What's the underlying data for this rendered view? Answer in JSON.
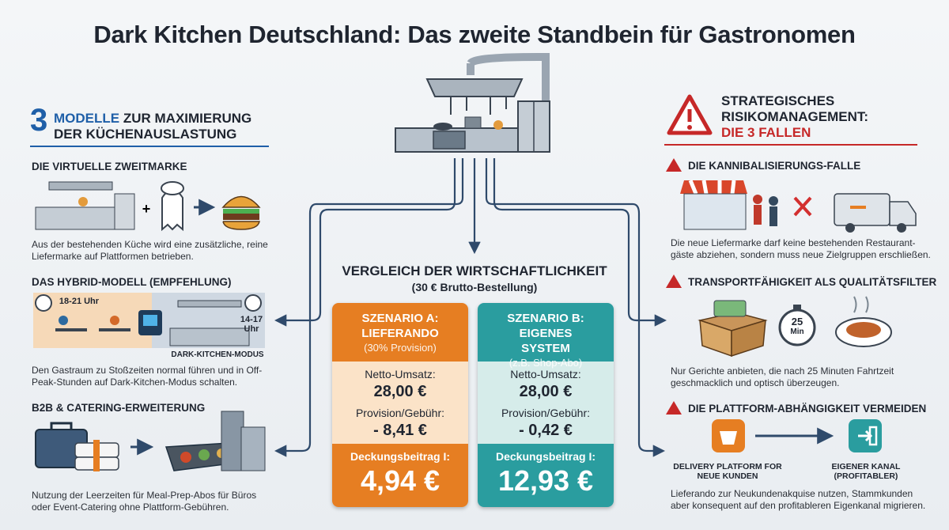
{
  "title": "Dark Kitchen Deutschland: Das zweite Standbein für Gastronomen",
  "left": {
    "heading_number": "3",
    "heading_highlight": "MODELLE",
    "heading_rest": "ZUR MAXIMIERUNG DER KÜCHENAUSLASTUNG",
    "models": [
      {
        "title": "DIE VIRTUELLE ZWEITMARKE",
        "text": "Aus der bestehenden Küche wird eine zusätzliche, reine Liefermarke auf Plattformen betrieben."
      },
      {
        "title": "DAS HYBRID-MODELL (EMPFEHLUNG)",
        "labels": [
          "18-21 Uhr",
          "14-17 Uhr",
          "DARK-KITCHEN-MODUS"
        ],
        "text": "Den Gastraum zu Stoßzeiten normal führen und in Off-Peak-Stunden auf Dark-Kitchen-Modus schalten."
      },
      {
        "title": "B2B & CATERING-ERWEITERUNG",
        "text": "Nutzung der Leerzeiten für Meal-Prep-Abos für Büros oder Event-Catering ohne Plattform-Gebühren."
      }
    ]
  },
  "center": {
    "title": "VERGLEICH DER WIRTSCHAFTLICHKEIT",
    "subtitle": "(30 € Brutto-Bestellung)",
    "scenarios": [
      {
        "name": "SZENARIO A: LIEFERANDO",
        "note": "(30% Provision)",
        "rows": [
          {
            "label": "Netto-Umsatz:",
            "value": "28,00 €"
          },
          {
            "label": "Provision/Gebühr:",
            "value": "- 8,41 €"
          }
        ],
        "result_label": "Deckungsbeitrag I:",
        "result": "4,94 €"
      },
      {
        "name": "SZENARIO B: EIGENES SYSTEM",
        "note": "(z.B. Shop-Abo)",
        "rows": [
          {
            "label": "Netto-Umsatz:",
            "value": "28,00 €"
          },
          {
            "label": "Provision/Gebühr:",
            "value": "- 0,42 €"
          }
        ],
        "result_label": "Deckungsbeitrag I:",
        "result": "12,93 €"
      }
    ]
  },
  "right": {
    "heading": "STRATEGISCHES RISIKOMANAGEMENT:",
    "heading_highlight": "DIE 3 FALLEN",
    "traps": [
      {
        "title": "DIE KANNIBALISIERUNGS-FALLE",
        "text": "Die neue Liefermarke darf keine bestehenden Restaurant-gäste abziehen, sondern muss neue Zielgruppen erschließen."
      },
      {
        "title": "TRANSPORTFÄHIGKEIT ALS QUALITÄTSFILTER",
        "labels": [
          "25",
          "Min"
        ],
        "text": "Nur Gerichte anbieten, die nach 25 Minuten Fahrtzeit geschmacklich und optisch überzeugen."
      },
      {
        "title": "DIE PLATTFORM-ABHÄNGIGKEIT VERMEIDEN",
        "labels": [
          "DELIVERY PLATFORM FOR NEUE KUNDEN",
          "EIGENER KANAL (PROFITABLER)"
        ],
        "text": "Lieferando zur Neukundenakquise nutzen, Stammkunden aber konsequent auf den profitableren Eigenkanal migrieren."
      }
    ]
  }
}
